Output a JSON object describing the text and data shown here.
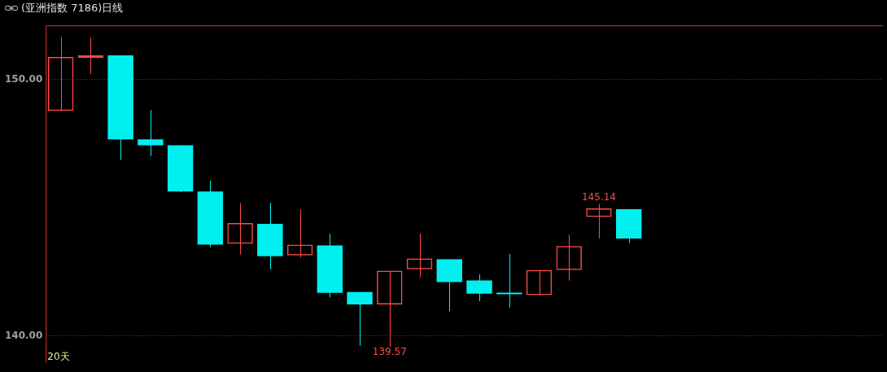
{
  "chart_data": {
    "type": "candlestick",
    "title": "(亚洲指数 7186)日线",
    "categories": [
      null,
      null,
      null,
      null,
      null,
      null,
      null,
      null,
      null,
      null,
      null,
      null,
      null,
      null,
      null,
      null,
      null,
      null,
      null,
      null,
      null,
      null,
      null,
      null,
      null,
      null,
      null,
      null
    ],
    "ohlc": [
      [
        148.77,
        151.65,
        148.77,
        150.87
      ],
      [
        150.84,
        151.62,
        150.21,
        150.93
      ],
      [
        150.93,
        150.93,
        146.86,
        147.66
      ],
      [
        147.66,
        148.8,
        147.01,
        147.43
      ],
      [
        147.43,
        147.43,
        145.6,
        145.63
      ],
      [
        145.63,
        146.05,
        143.47,
        143.56
      ],
      [
        143.59,
        145.18,
        143.17,
        144.4
      ],
      [
        144.37,
        145.18,
        142.6,
        143.11
      ],
      [
        143.14,
        144.94,
        143.05,
        143.56
      ],
      [
        143.53,
        143.98,
        141.5,
        141.68
      ],
      [
        141.71,
        141.71,
        139.62,
        141.23
      ],
      [
        141.23,
        142.54,
        139.57,
        142.54
      ],
      [
        142.6,
        143.98,
        142.28,
        143.02
      ],
      [
        142.99,
        142.99,
        140.96,
        142.1
      ],
      [
        142.16,
        142.4,
        141.35,
        141.65
      ],
      [
        141.68,
        143.2,
        141.11,
        141.62
      ],
      [
        141.59,
        142.57,
        141.59,
        142.57
      ],
      [
        142.57,
        143.95,
        142.16,
        143.5
      ],
      [
        144.64,
        145.14,
        143.8,
        144.97
      ],
      [
        144.94,
        144.94,
        143.62,
        143.8
      ],
      null,
      null,
      null,
      null,
      null,
      null,
      null,
      null
    ],
    "colors": [
      "#ff4a4a",
      "#ff4a4a",
      "#00f0f0",
      "#00f0f0",
      "#00f0f0",
      "#00f0f0",
      "#ff4a4a",
      "#00f0f0",
      "#ff4a4a",
      "#00f0f0",
      "#00f0f0",
      "#ff4a4a",
      "#ff4a4a",
      "#00f0f0",
      "#00f0f0",
      "#00f0f0",
      "#ff4a4a",
      "#ff4a4a",
      "#ff4a4a",
      "#00f0f0",
      null,
      null,
      null,
      null,
      null,
      null,
      null,
      null
    ],
    "ylim": [
      138.95,
      152.1
    ],
    "yticks": [
      {
        "value": 150,
        "label": "150.00"
      },
      {
        "value": 140,
        "label": "140.00"
      }
    ],
    "grid": "y",
    "annotations": [
      {
        "text": "145.14",
        "y": 145.14
      },
      {
        "text": "139.57",
        "y": 139.57
      },
      "20天"
    ]
  }
}
